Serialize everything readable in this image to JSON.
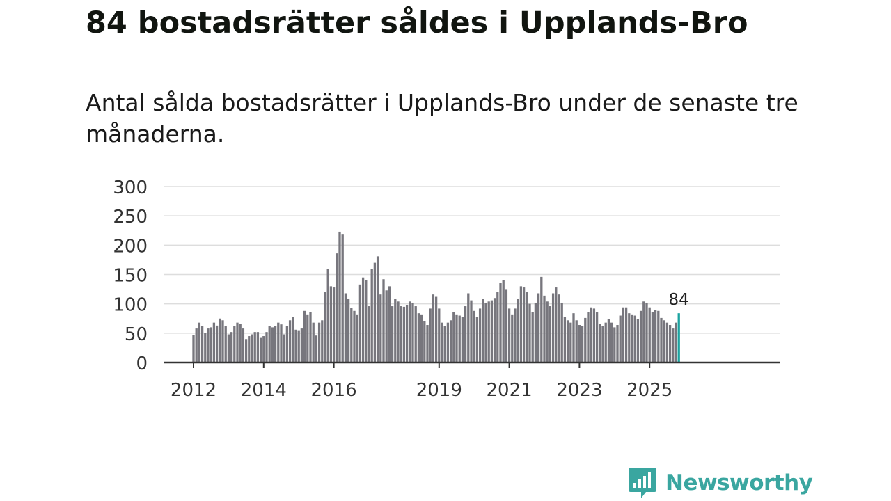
{
  "title": "84 bostadsrätter såldes i Upplands-Bro",
  "subtitle": "Antal sålda bostadsrätter i Upplands-Bro under de senaste tre månaderna.",
  "brand": {
    "name": "Newsworthy",
    "color": "#3aa6a0"
  },
  "colors": {
    "bar": "#77767d",
    "highlight": "#1ba3a0",
    "grid": "#dddddd",
    "axis": "#333333"
  },
  "chart_data": {
    "type": "bar",
    "x_start": "2012-01",
    "x_step_months": 1,
    "ylim": [
      0,
      300
    ],
    "yticks": [
      0,
      50,
      100,
      150,
      200,
      250,
      300
    ],
    "xticks": [
      {
        "label": "2012",
        "index": 0
      },
      {
        "label": "2014",
        "index": 24
      },
      {
        "label": "2016",
        "index": 48
      },
      {
        "label": "2019",
        "index": 84
      },
      {
        "label": "2021",
        "index": 108
      },
      {
        "label": "2023",
        "index": 132
      },
      {
        "label": "2025",
        "index": 156
      }
    ],
    "highlight_label": "84",
    "values": [
      47,
      58,
      68,
      62,
      50,
      58,
      60,
      68,
      63,
      75,
      72,
      62,
      48,
      52,
      62,
      68,
      66,
      58,
      40,
      45,
      48,
      52,
      52,
      42,
      45,
      52,
      62,
      60,
      62,
      68,
      65,
      48,
      62,
      72,
      78,
      56,
      55,
      58,
      88,
      82,
      86,
      68,
      46,
      68,
      72,
      120,
      160,
      130,
      128,
      186,
      223,
      218,
      118,
      108,
      93,
      88,
      82,
      133,
      145,
      140,
      96,
      160,
      170,
      181,
      116,
      142,
      123,
      130,
      96,
      108,
      104,
      96,
      95,
      98,
      104,
      102,
      96,
      84,
      82,
      70,
      64,
      92,
      116,
      112,
      92,
      68,
      62,
      68,
      72,
      86,
      82,
      80,
      78,
      96,
      118,
      106,
      88,
      78,
      92,
      108,
      102,
      104,
      106,
      110,
      120,
      136,
      140,
      124,
      92,
      82,
      92,
      108,
      130,
      128,
      120,
      100,
      86,
      102,
      118,
      146,
      114,
      104,
      96,
      118,
      128,
      116,
      102,
      78,
      72,
      68,
      84,
      72,
      64,
      62,
      76,
      86,
      94,
      92,
      86,
      66,
      62,
      68,
      74,
      68,
      60,
      64,
      80,
      94,
      94,
      84,
      82,
      80,
      74,
      88,
      104,
      102,
      94,
      86,
      90,
      88,
      76,
      72,
      68,
      64,
      58,
      68,
      84
    ]
  }
}
